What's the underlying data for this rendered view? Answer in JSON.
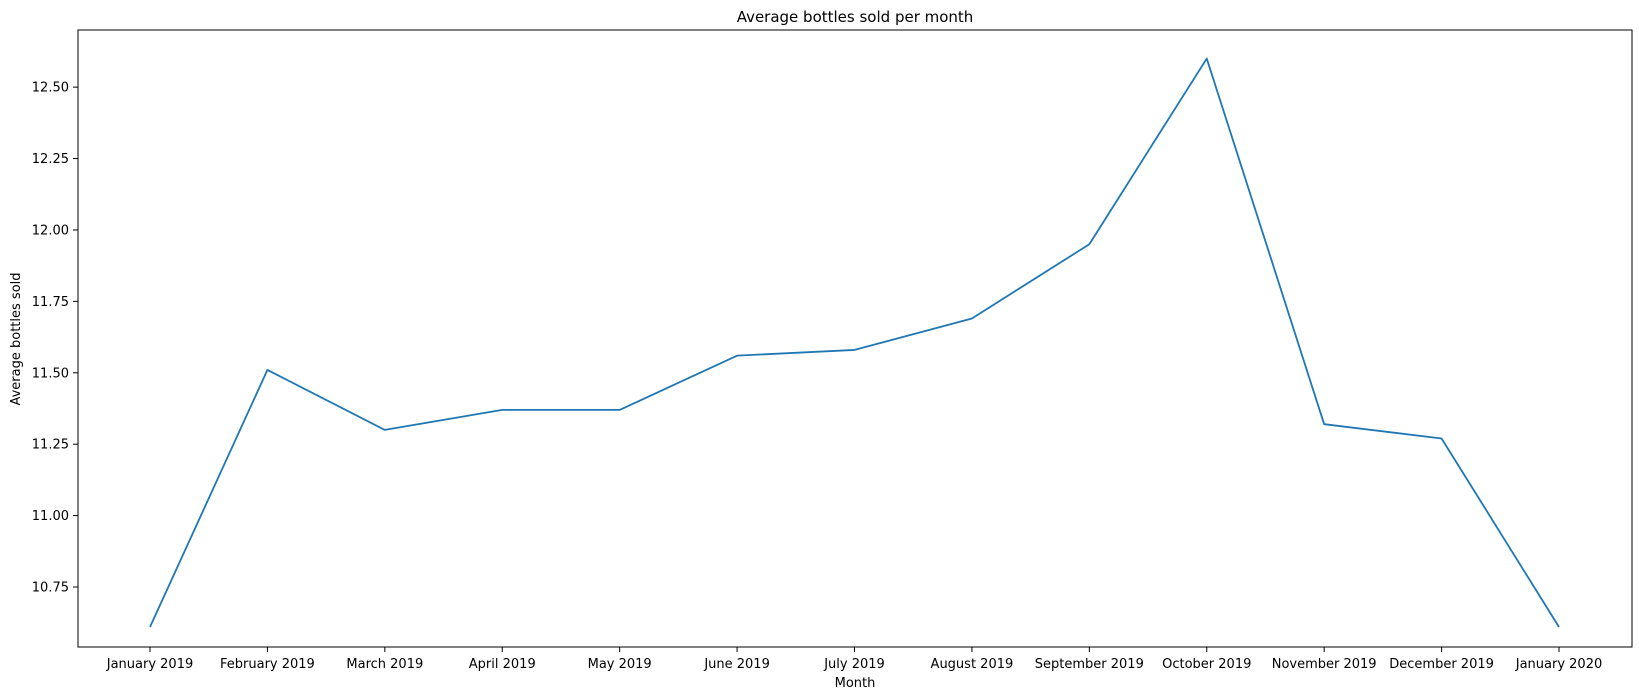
{
  "chart_data": {
    "type": "line",
    "title": "Average bottles sold per month",
    "xlabel": "Month",
    "ylabel": "Average bottles sold",
    "categories": [
      "January 2019",
      "February 2019",
      "March 2019",
      "April 2019",
      "May 2019",
      "June 2019",
      "July 2019",
      "August 2019",
      "September 2019",
      "October 2019",
      "November 2019",
      "December 2019",
      "January 2020"
    ],
    "series": [
      {
        "values": [
          10.61,
          11.51,
          11.3,
          11.37,
          11.37,
          11.56,
          11.58,
          11.69,
          11.95,
          12.6,
          11.32,
          11.27,
          10.61
        ],
        "color": "#1f77b4"
      }
    ],
    "yticks": [
      "10.75",
      "11.00",
      "11.25",
      "11.50",
      "11.75",
      "12.00",
      "12.25",
      "12.50"
    ],
    "ylim": [
      10.54,
      12.7
    ],
    "grid": false
  }
}
